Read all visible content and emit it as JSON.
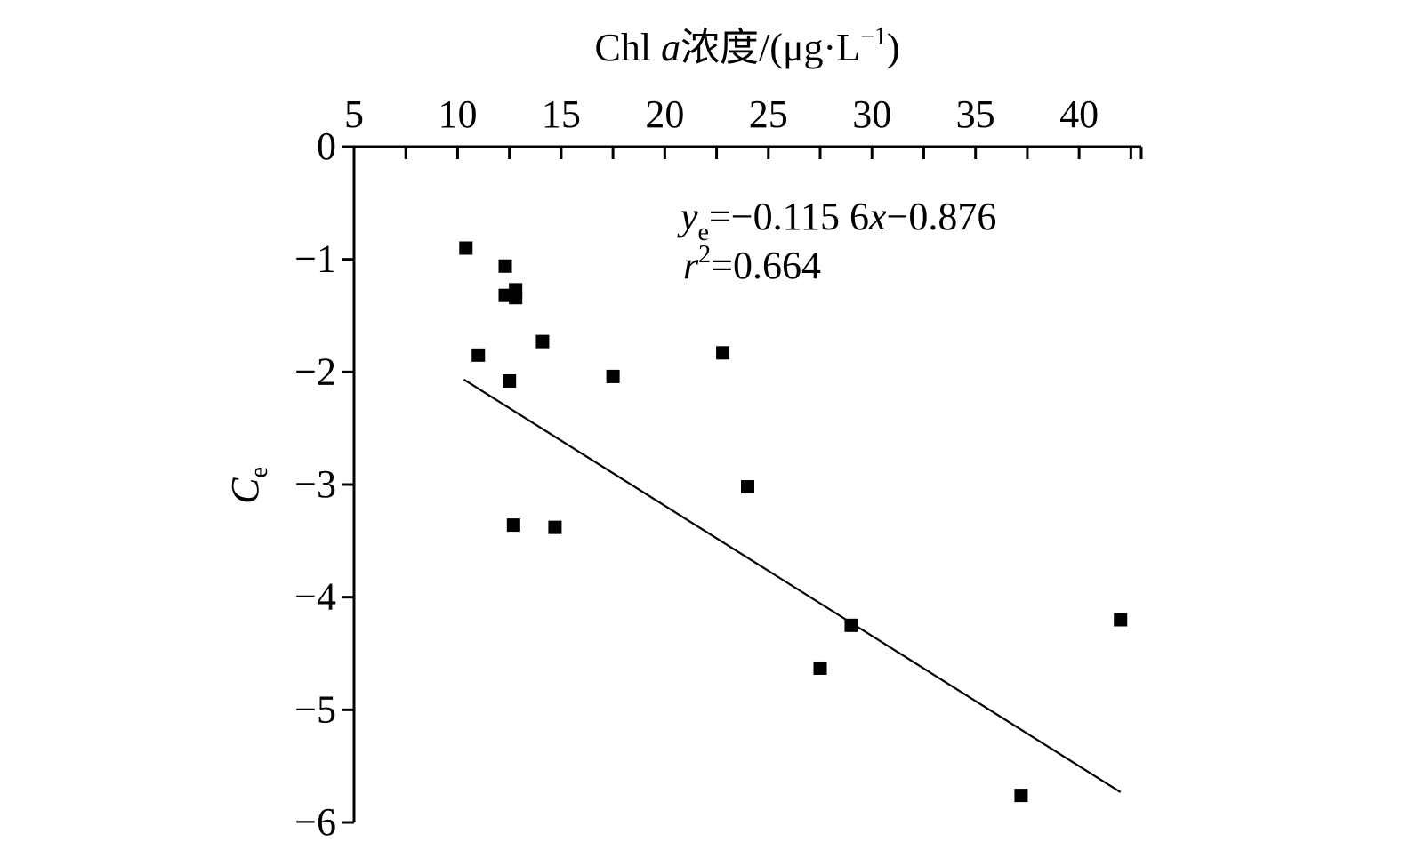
{
  "chart_data": {
    "type": "scatter",
    "title": "",
    "xlabel": {
      "prefix": "Chl ",
      "variable": "a",
      "suffix": "浓度/(μg·L",
      "superscript": "−1",
      "close": ")"
    },
    "ylabel": {
      "main": "C",
      "subscript": "e"
    },
    "x_axis": {
      "position": "top",
      "range": [
        5,
        43
      ],
      "ticks": [
        5,
        10,
        15,
        20,
        25,
        30,
        35,
        40
      ],
      "tick_labels": [
        "5",
        "10",
        "15",
        "20",
        "25",
        "30",
        "35",
        "40"
      ]
    },
    "y_axis": {
      "range": [
        -6,
        0
      ],
      "ticks": [
        0,
        -1,
        -2,
        -3,
        -4,
        -5,
        -6
      ],
      "tick_labels": [
        "0",
        "−1",
        "−2",
        "−3",
        "−4",
        "−5",
        "−6"
      ]
    },
    "grid": false,
    "legend": "none",
    "marker": "square",
    "color": "#000000",
    "points": [
      {
        "x": 10.4,
        "y": -0.9
      },
      {
        "x": 11.0,
        "y": -1.85
      },
      {
        "x": 12.3,
        "y": -1.06
      },
      {
        "x": 12.3,
        "y": -1.32
      },
      {
        "x": 12.8,
        "y": -1.27
      },
      {
        "x": 12.8,
        "y": -1.34
      },
      {
        "x": 12.5,
        "y": -2.08
      },
      {
        "x": 12.7,
        "y": -3.36
      },
      {
        "x": 14.1,
        "y": -1.73
      },
      {
        "x": 14.7,
        "y": -3.38
      },
      {
        "x": 17.5,
        "y": -2.04
      },
      {
        "x": 22.8,
        "y": -1.83
      },
      {
        "x": 24.0,
        "y": -3.02
      },
      {
        "x": 27.5,
        "y": -4.63
      },
      {
        "x": 29.0,
        "y": -4.25
      },
      {
        "x": 37.2,
        "y": -5.76
      },
      {
        "x": 42.0,
        "y": -4.2
      }
    ],
    "fit_line": {
      "x_start": 10.3,
      "x_end": 42.0
    },
    "annotations": {
      "equation": {
        "var": "y",
        "sub": "e",
        "rest_before_x": "=−0.115 6",
        "x_var": "x",
        "rest_after_x": "−0.876"
      },
      "r2": {
        "var": "r",
        "sup": "2",
        "rest": "=0.664"
      }
    }
  }
}
